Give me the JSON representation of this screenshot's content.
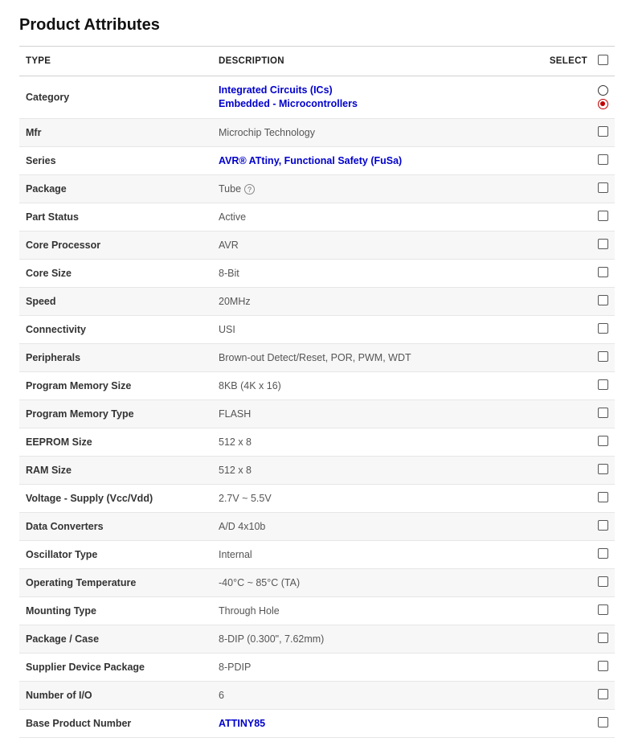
{
  "title": "Product Attributes",
  "columns": {
    "type": "TYPE",
    "description": "DESCRIPTION",
    "select": "SELECT"
  },
  "category_row": {
    "type": "Category",
    "link1": "Integrated Circuits (ICs)",
    "link2": "Embedded - Microcontrollers"
  },
  "rows": [
    {
      "type": "Mfr",
      "desc": "Microchip Technology",
      "link": false,
      "alt": true
    },
    {
      "type": "Series",
      "desc": "AVR® ATtiny, Functional Safety (FuSa)",
      "link": true,
      "alt": false
    },
    {
      "type": "Package",
      "desc": "Tube",
      "help": true,
      "link": false,
      "alt": true
    },
    {
      "type": "Part Status",
      "desc": "Active",
      "link": false,
      "alt": false
    },
    {
      "type": "Core Processor",
      "desc": "AVR",
      "link": false,
      "alt": true
    },
    {
      "type": "Core Size",
      "desc": "8-Bit",
      "link": false,
      "alt": false
    },
    {
      "type": "Speed",
      "desc": "20MHz",
      "link": false,
      "alt": true
    },
    {
      "type": "Connectivity",
      "desc": "USI",
      "link": false,
      "alt": false
    },
    {
      "type": "Peripherals",
      "desc": "Brown-out Detect/Reset, POR, PWM, WDT",
      "link": false,
      "alt": true
    },
    {
      "type": "Program Memory Size",
      "desc": "8KB (4K x 16)",
      "link": false,
      "alt": false
    },
    {
      "type": "Program Memory Type",
      "desc": "FLASH",
      "link": false,
      "alt": true
    },
    {
      "type": "EEPROM Size",
      "desc": "512 x 8",
      "link": false,
      "alt": false
    },
    {
      "type": "RAM Size",
      "desc": "512 x 8",
      "link": false,
      "alt": true
    },
    {
      "type": "Voltage - Supply (Vcc/Vdd)",
      "desc": "2.7V ~ 5.5V",
      "link": false,
      "alt": false
    },
    {
      "type": "Data Converters",
      "desc": "A/D 4x10b",
      "link": false,
      "alt": true
    },
    {
      "type": "Oscillator Type",
      "desc": "Internal",
      "link": false,
      "alt": false
    },
    {
      "type": "Operating Temperature",
      "desc": "-40°C ~ 85°C (TA)",
      "link": false,
      "alt": true
    },
    {
      "type": "Mounting Type",
      "desc": "Through Hole",
      "link": false,
      "alt": false
    },
    {
      "type": "Package / Case",
      "desc": "8-DIP (0.300\", 7.62mm)",
      "link": false,
      "alt": true
    },
    {
      "type": "Supplier Device Package",
      "desc": "8-PDIP",
      "link": false,
      "alt": false
    },
    {
      "type": "Number of I/O",
      "desc": "6",
      "link": false,
      "alt": true
    },
    {
      "type": "Base Product Number",
      "desc": "ATTINY85",
      "link": true,
      "alt": false
    }
  ]
}
